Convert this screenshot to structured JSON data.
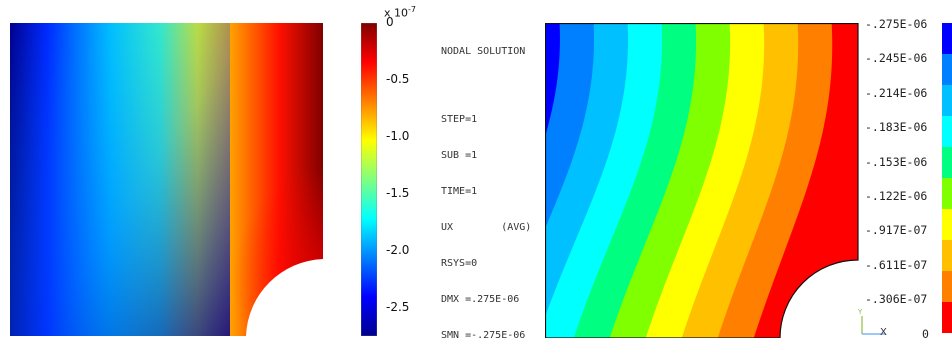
{
  "left_figure": {
    "colorbar": {
      "scale_note": "x 10",
      "scale_exp": "-7",
      "ticks": [
        "0",
        "-0.5",
        "-1.0",
        "-1.5",
        "-2.0",
        "-2.5"
      ],
      "colormap": "jet",
      "range": [
        -2.75,
        0
      ]
    }
  },
  "ansys_panel": {
    "header": "NODAL SOLUTION",
    "lines": [
      "STEP=1",
      "SUB =1",
      "TIME=1",
      "UX        (AVG)",
      "RSYS=0",
      "DMX =.275E-06",
      "SMN =-.275E-06"
    ],
    "legend_values": [
      "-.275E-06",
      "-.245E-06",
      "-.214E-06",
      "-.183E-06",
      "-.153E-06",
      "-.122E-06",
      "-.917E-07",
      "-.611E-07",
      "-.306E-07",
      "0"
    ],
    "legend_colors": [
      "#0000ff",
      "#0080ff",
      "#00c0ff",
      "#00ffff",
      "#00ff80",
      "#80ff00",
      "#ffff00",
      "#ffc000",
      "#ff8000",
      "#ff0000"
    ],
    "triad": {
      "y_label": "Y",
      "x_label": "X"
    }
  }
}
